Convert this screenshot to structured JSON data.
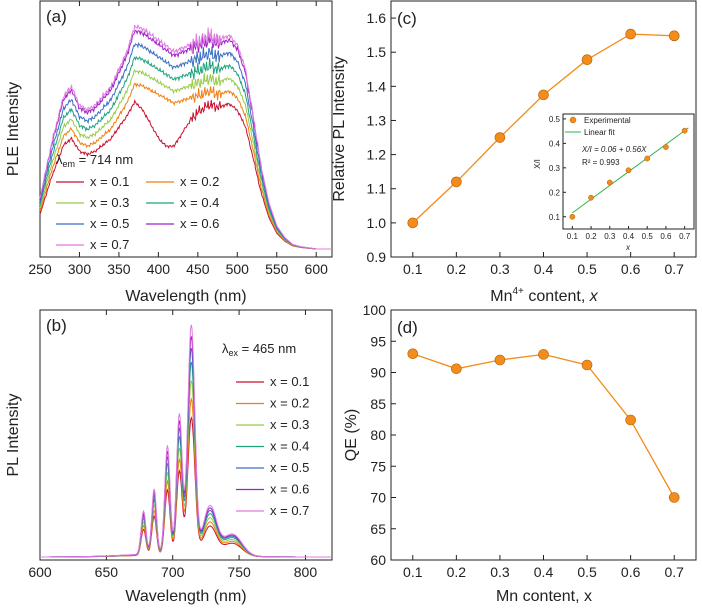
{
  "colors": {
    "x01": "#c8102e",
    "x02": "#f07f0f",
    "x03": "#98cc47",
    "x04": "#1fa37f",
    "x05": "#3a6fc4",
    "x06": "#a020c8",
    "x07": "#e07be0",
    "orange": "#f28c1a",
    "green": "#2fb24f"
  },
  "chart_data": [
    {
      "panel": "(a)",
      "type": "line",
      "xlabel": "Wavelength (nm)",
      "ylabel": "PLE Intensity",
      "xlim": [
        250,
        620
      ],
      "xticks": [
        "250",
        "300",
        "350",
        "400",
        "450",
        "500",
        "550",
        "600"
      ],
      "annotation": {
        "symbol": "λ",
        "sub": "em",
        "text": " = 714 nm"
      },
      "series_names": [
        "x = 0.1",
        "x = 0.2",
        "x = 0.3",
        "x = 0.4",
        "x = 0.5",
        "x = 0.6",
        "x = 0.7"
      ],
      "series_scale": [
        0.68,
        0.74,
        0.8,
        0.86,
        0.92,
        0.98,
        1.0
      ],
      "shape_x": [
        250,
        265,
        280,
        290,
        300,
        310,
        320,
        340,
        360,
        370,
        380,
        400,
        420,
        440,
        455,
        465,
        475,
        490,
        500,
        510,
        520,
        530,
        540,
        550,
        560,
        570,
        580,
        600,
        620
      ],
      "shape_y": [
        0.22,
        0.46,
        0.66,
        0.7,
        0.62,
        0.6,
        0.62,
        0.7,
        0.85,
        0.96,
        0.95,
        0.9,
        0.85,
        0.88,
        0.9,
        0.92,
        0.9,
        0.92,
        0.88,
        0.78,
        0.58,
        0.36,
        0.2,
        0.1,
        0.05,
        0.02,
        0.01,
        0.0,
        0.0
      ]
    },
    {
      "panel": "(b)",
      "type": "line",
      "xlabel": "Wavelength (nm)",
      "ylabel": "PL Intensity",
      "xlim": [
        600,
        820
      ],
      "xticks": [
        "600",
        "650",
        "700",
        "750",
        "800"
      ],
      "annotation": {
        "symbol": "λ",
        "sub": "ex",
        "text": " = 465 nm"
      },
      "series_names": [
        "x = 0.1",
        "x = 0.2",
        "x = 0.3",
        "x = 0.4",
        "x = 0.5",
        "x = 0.6",
        "x = 0.7"
      ],
      "series_scale": [
        0.6,
        0.68,
        0.76,
        0.84,
        0.9,
        0.95,
        1.0
      ],
      "peaks": [
        {
          "center": 678,
          "height": 0.18,
          "width": 2.5
        },
        {
          "center": 686,
          "height": 0.27,
          "width": 2.5
        },
        {
          "center": 696,
          "height": 0.45,
          "width": 2.8
        },
        {
          "center": 705,
          "height": 0.58,
          "width": 3.0
        },
        {
          "center": 714,
          "height": 0.95,
          "width": 3.8
        },
        {
          "center": 728,
          "height": 0.2,
          "width": 7.0
        },
        {
          "center": 745,
          "height": 0.09,
          "width": 10.0
        }
      ]
    },
    {
      "panel": "(c)",
      "type": "line",
      "xlabel": "Mn⁴⁺ content, x",
      "ylabel": "Relative PL Intensity",
      "x": [
        0.1,
        0.2,
        0.3,
        0.4,
        0.5,
        0.6,
        0.7
      ],
      "y": [
        1.0,
        1.12,
        1.25,
        1.375,
        1.478,
        1.553,
        1.548
      ],
      "xlim": [
        0.05,
        0.75
      ],
      "ylim": [
        0.9,
        1.65
      ],
      "xticks": [
        "0.1",
        "0.2",
        "0.3",
        "0.4",
        "0.5",
        "0.6",
        "0.7"
      ],
      "yticks": [
        "0.9",
        "1.0",
        "1.1",
        "1.2",
        "1.3",
        "1.4",
        "1.5",
        "1.6"
      ],
      "inset": {
        "type": "scatter",
        "xlabel": "x",
        "ylabel": "X/I",
        "x": [
          0.1,
          0.2,
          0.3,
          0.4,
          0.5,
          0.6,
          0.7
        ],
        "y": [
          0.1,
          0.178,
          0.24,
          0.29,
          0.338,
          0.385,
          0.452
        ],
        "fit": {
          "intercept": 0.06,
          "slope": 0.56
        },
        "xlim": [
          0.05,
          0.75
        ],
        "ylim": [
          0.05,
          0.52
        ],
        "xticks": [
          "0.1",
          "0.2",
          "0.3",
          "0.4",
          "0.5",
          "0.6",
          "0.7"
        ],
        "yticks": [
          "0.1",
          "0.2",
          "0.3",
          "0.4",
          "0.5"
        ],
        "legend": [
          "Experimental",
          "Linear fit"
        ],
        "equation": "X/I = 0.06 + 0.56X",
        "r2": "R² = 0.993"
      }
    },
    {
      "panel": "(d)",
      "type": "line",
      "xlabel": "Mn content, x",
      "ylabel": "QE (%)",
      "x": [
        0.1,
        0.2,
        0.3,
        0.4,
        0.5,
        0.6,
        0.7
      ],
      "y": [
        93.0,
        90.6,
        92.0,
        92.9,
        91.2,
        82.4,
        70.0
      ],
      "xlim": [
        0.05,
        0.75
      ],
      "ylim": [
        60,
        100
      ],
      "xticks": [
        "0.1",
        "0.2",
        "0.3",
        "0.4",
        "0.5",
        "0.6",
        "0.7"
      ],
      "yticks": [
        "60",
        "65",
        "70",
        "75",
        "80",
        "85",
        "90",
        "95",
        "100"
      ]
    }
  ]
}
